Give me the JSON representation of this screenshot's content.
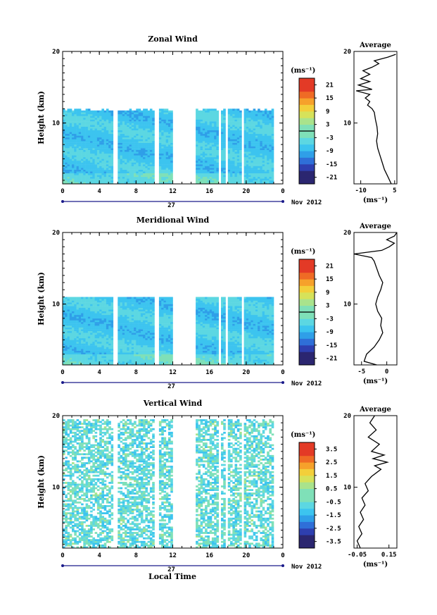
{
  "colors": {
    "background": "#ffffff",
    "axis": "#000000",
    "colormap": [
      "#2b2670",
      "#2e3fb0",
      "#2f6fd8",
      "#2f9fe8",
      "#3cc4ef",
      "#5cd7e2",
      "#7fe0b8",
      "#a9e38c",
      "#d6e25a",
      "#f3cf3a",
      "#f6a12b",
      "#ef6b25",
      "#e33a26"
    ]
  },
  "x_axis": {
    "label": "Local Time",
    "ticks": [
      "0",
      "4",
      "8",
      "12",
      "16",
      "20",
      "0"
    ],
    "date_day": "27",
    "date_month": "Nov 2012"
  },
  "chart_data": [
    {
      "id": "zonal",
      "type": "heatmap",
      "title": "Zonal Wind",
      "ylabel": "Height (km)",
      "unit_label": "(ms⁻¹)",
      "xlim": [
        0,
        24
      ],
      "ylim": [
        1.5,
        20
      ],
      "y_ticks": [
        "10",
        "20"
      ],
      "data_gaps_hours": [
        [
          5.5,
          6.0
        ],
        [
          9.8,
          10.3
        ],
        [
          12.0,
          14.5
        ],
        [
          16.8,
          17.1
        ],
        [
          17.7,
          18.0
        ],
        [
          19.3,
          19.7
        ],
        [
          23.0,
          24.0
        ]
      ],
      "data_top_km": 12,
      "colorbar": {
        "min": -24,
        "max": 24,
        "ticks": [
          "21",
          "15",
          "9",
          "3",
          "-3",
          "-9",
          "-15",
          "-21"
        ],
        "zero_line": 0
      },
      "average": {
        "title": "Average",
        "xlim": [
          -13,
          6
        ],
        "x_ticks": [
          "-10",
          "5"
        ],
        "ylim": [
          1.5,
          20
        ],
        "y_ticks": [
          "10",
          "20"
        ],
        "xlabel": "(ms⁻¹)",
        "profile": [
          [
            3.5,
            1.5
          ],
          [
            2,
            2.5
          ],
          [
            0.5,
            3.5
          ],
          [
            -0.5,
            4.5
          ],
          [
            -1.5,
            5.5
          ],
          [
            -2.5,
            6.5
          ],
          [
            -3,
            7.5
          ],
          [
            -2.5,
            8.5
          ],
          [
            -2.8,
            9.5
          ],
          [
            -3.5,
            10.5
          ],
          [
            -4,
            11.5
          ],
          [
            -5,
            12
          ],
          [
            -7,
            12.5
          ],
          [
            -6,
            13
          ],
          [
            -8,
            13.5
          ],
          [
            -6,
            14
          ],
          [
            -12,
            14.5
          ],
          [
            -5,
            14.7
          ],
          [
            -8,
            15
          ],
          [
            -11,
            15.3
          ],
          [
            -6,
            15.8
          ],
          [
            -10,
            16.2
          ],
          [
            -6,
            16.8
          ],
          [
            -9,
            17.3
          ],
          [
            -5,
            17.8
          ],
          [
            -2,
            18.3
          ],
          [
            -4,
            18.7
          ],
          [
            2,
            19.2
          ],
          [
            5.5,
            19.6
          ]
        ]
      }
    },
    {
      "id": "meridional",
      "type": "heatmap",
      "title": "Meridional Wind",
      "ylabel": "Height (km)",
      "unit_label": "(ms⁻¹)",
      "xlim": [
        0,
        24
      ],
      "ylim": [
        1.5,
        20
      ],
      "y_ticks": [
        "10",
        "20"
      ],
      "data_gaps_hours": [
        [
          5.5,
          6.0
        ],
        [
          9.8,
          10.3
        ],
        [
          12.0,
          14.5
        ],
        [
          16.8,
          17.1
        ],
        [
          17.7,
          18.0
        ],
        [
          19.3,
          19.7
        ],
        [
          23.0,
          24.0
        ]
      ],
      "data_top_km": 11,
      "colorbar": {
        "min": -24,
        "max": 24,
        "ticks": [
          "21",
          "15",
          "9",
          "3",
          "-3",
          "-9",
          "-15",
          "-21"
        ],
        "zero_line": 0
      },
      "average": {
        "title": "Average",
        "xlim": [
          -6.5,
          2
        ],
        "x_ticks": [
          "-5",
          "0"
        ],
        "ylim": [
          1.5,
          20
        ],
        "y_ticks": [
          "10",
          "20"
        ],
        "xlabel": "(ms⁻¹)",
        "profile": [
          [
            -2,
            1.5
          ],
          [
            -4.5,
            2
          ],
          [
            -4,
            3
          ],
          [
            -2.5,
            4
          ],
          [
            -1.5,
            5
          ],
          [
            -0.8,
            6
          ],
          [
            -1.2,
            7
          ],
          [
            -1,
            8
          ],
          [
            -1.8,
            9
          ],
          [
            -2.2,
            10
          ],
          [
            -1.8,
            11
          ],
          [
            -1.2,
            12
          ],
          [
            -0.8,
            13
          ],
          [
            -1.5,
            14
          ],
          [
            -2,
            15
          ],
          [
            -2.5,
            16
          ],
          [
            -3,
            16.5
          ],
          [
            -6.5,
            17
          ],
          [
            -1,
            17.5
          ],
          [
            0.5,
            18
          ],
          [
            1.5,
            18.5
          ],
          [
            0,
            19
          ],
          [
            1.5,
            19.5
          ],
          [
            2,
            20
          ]
        ]
      }
    },
    {
      "id": "vertical",
      "type": "heatmap",
      "title": "Vertical Wind",
      "ylabel": "Height (km)",
      "unit_label": "(ms⁻¹)",
      "xlim": [
        0,
        24
      ],
      "ylim": [
        1.5,
        20
      ],
      "y_ticks": [
        "10",
        "20"
      ],
      "data_gaps_hours": [
        [
          5.5,
          6.0
        ],
        [
          9.8,
          10.3
        ],
        [
          12.0,
          14.5
        ],
        [
          16.8,
          17.1
        ],
        [
          17.7,
          18.0
        ],
        [
          19.3,
          19.7
        ],
        [
          23.0,
          24.0
        ]
      ],
      "data_top_km": 19.5,
      "colorbar": {
        "min": -4,
        "max": 4,
        "ticks": [
          "3.5",
          "2.5",
          "1.5",
          "0.5",
          "-0.5",
          "-1.5",
          "-2.5",
          "-3.5"
        ]
      },
      "average": {
        "title": "Average",
        "xlim": [
          -0.07,
          0.2
        ],
        "x_ticks": [
          "-0.05",
          "0.15"
        ],
        "ylim": [
          1.5,
          20
        ],
        "y_ticks": [
          "10",
          "20"
        ],
        "xlabel": "(ms⁻¹)",
        "profile": [
          [
            -0.03,
            1.5
          ],
          [
            -0.05,
            2.5
          ],
          [
            -0.02,
            3.5
          ],
          [
            -0.04,
            4.5
          ],
          [
            -0.01,
            5.5
          ],
          [
            -0.03,
            6.5
          ],
          [
            0.0,
            7.5
          ],
          [
            -0.02,
            8.5
          ],
          [
            0.02,
            9.5
          ],
          [
            0.0,
            10.5
          ],
          [
            0.04,
            11.5
          ],
          [
            0.1,
            12.5
          ],
          [
            0.06,
            13
          ],
          [
            0.14,
            13.5
          ],
          [
            0.05,
            14
          ],
          [
            0.12,
            14.5
          ],
          [
            0.04,
            15
          ],
          [
            0.09,
            16
          ],
          [
            0.02,
            17
          ],
          [
            0.07,
            18
          ],
          [
            0.03,
            19
          ],
          [
            0.06,
            20
          ]
        ]
      }
    }
  ]
}
